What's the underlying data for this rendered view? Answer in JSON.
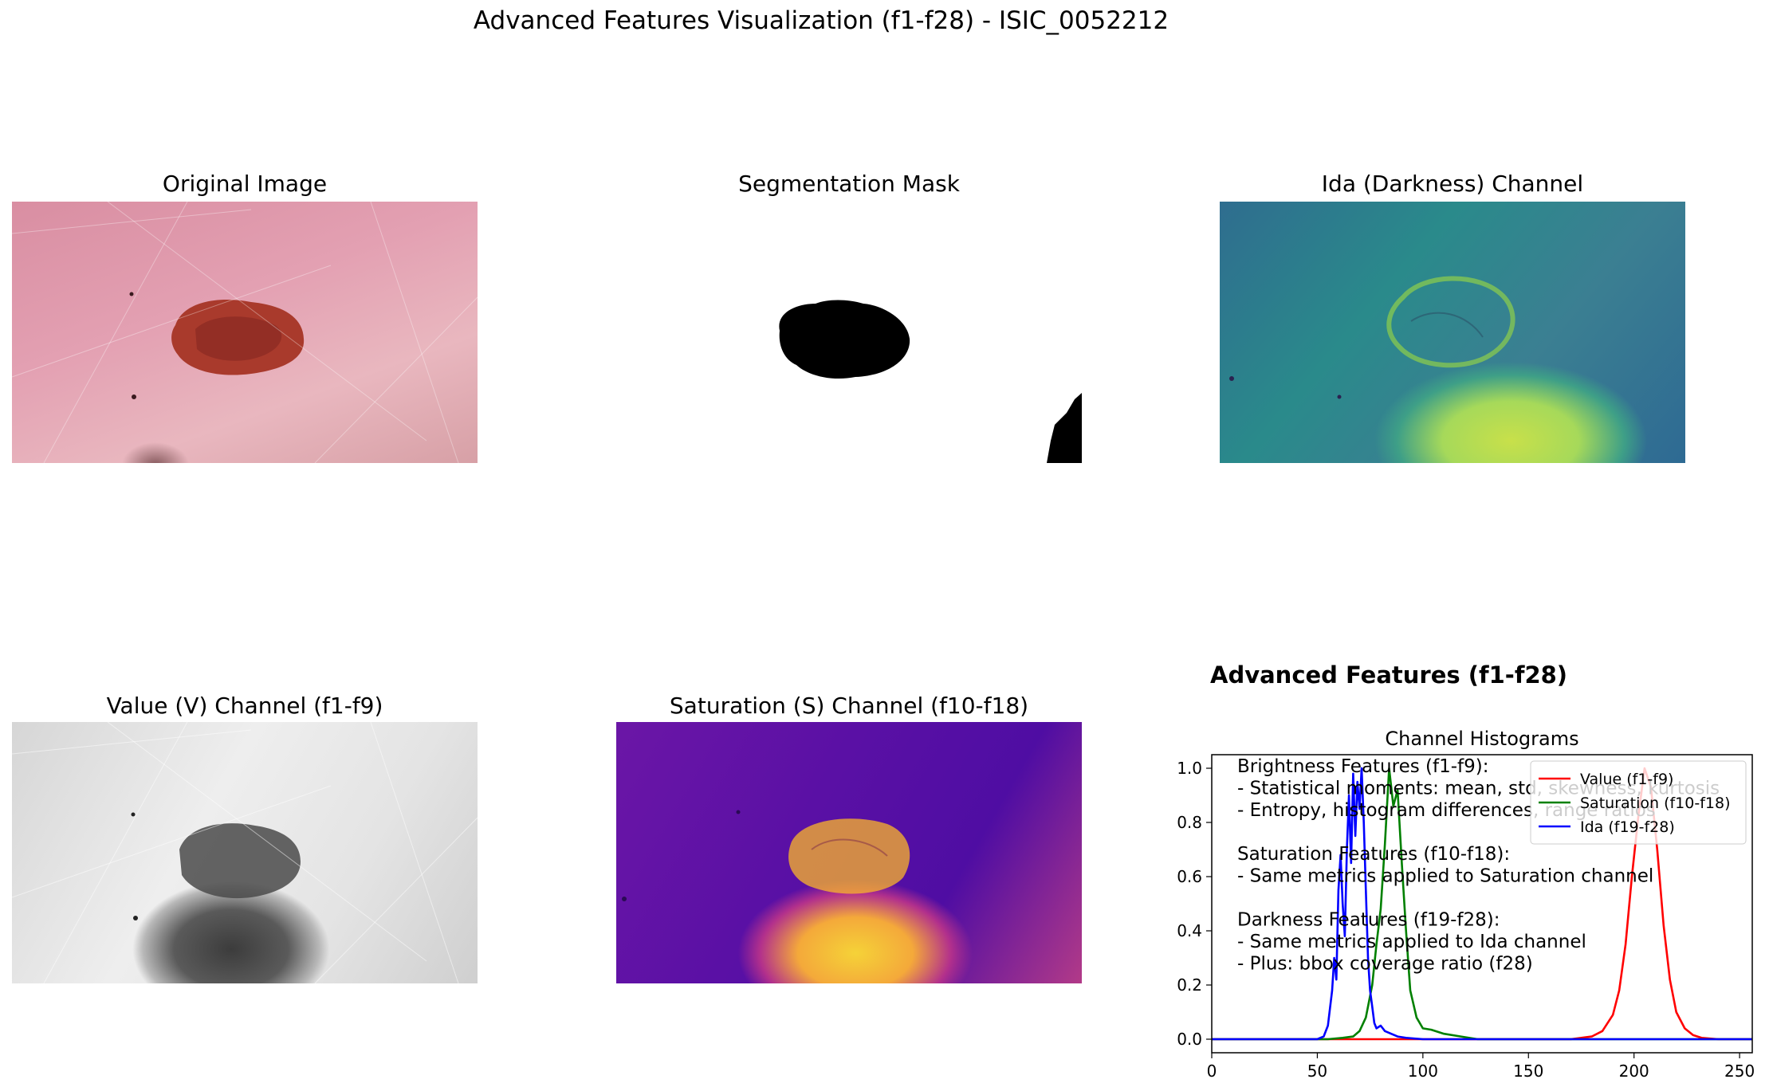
{
  "suptitle": "Advanced Features Visualization (f1-f28) - ISIC_0052212",
  "panels": {
    "original": "Original Image",
    "mask": "Segmentation Mask",
    "ida": "Ida (Darkness) Channel",
    "value": "Value (V) Channel (f1-f9)",
    "saturation": "Saturation (S) Channel (f10-f18)"
  },
  "features_title": "Advanced Features (f1-f28)",
  "notes": [
    "Brightness Features (f1-f9):",
    "- Statistical moments: mean, std, skewness, kurtosis",
    "- Entropy, histogram differences, range ratios",
    "",
    "Saturation Features (f10-f18):",
    "- Same metrics applied to Saturation channel",
    "",
    "Darkness Features (f19-f28):",
    "- Same metrics applied to Ida channel",
    "- Plus: bbox coverage ratio (f28)"
  ],
  "chart_data": {
    "type": "line",
    "title": "Channel Histograms",
    "xlabel": "",
    "ylabel": "",
    "xlim": [
      0,
      256
    ],
    "ylim": [
      -0.05,
      1.05
    ],
    "xticks": [
      0,
      50,
      100,
      150,
      200,
      250
    ],
    "yticks": [
      0.0,
      0.2,
      0.4,
      0.6,
      0.8,
      1.0
    ],
    "legend_position": "upper-right",
    "series": [
      {
        "name": "Value (f1-f9)",
        "color": "#ff0000",
        "x": [
          0,
          170,
          175,
          180,
          185,
          190,
          193,
          196,
          199,
          202,
          205,
          208,
          211,
          214,
          217,
          220,
          224,
          228,
          232,
          240,
          256
        ],
        "y": [
          0,
          0,
          0.005,
          0.01,
          0.03,
          0.09,
          0.18,
          0.35,
          0.6,
          0.82,
          1.0,
          0.93,
          0.7,
          0.42,
          0.22,
          0.1,
          0.04,
          0.015,
          0.005,
          0,
          0
        ]
      },
      {
        "name": "Saturation (f10-f18)",
        "color": "#008000",
        "x": [
          0,
          55,
          62,
          67,
          70,
          73,
          76,
          78,
          80,
          82,
          84,
          86,
          88,
          90,
          92,
          94,
          97,
          100,
          104,
          110,
          118,
          126,
          140,
          256
        ],
        "y": [
          0,
          0,
          0.005,
          0.01,
          0.03,
          0.08,
          0.2,
          0.35,
          0.48,
          0.72,
          1.0,
          0.86,
          0.92,
          0.65,
          0.4,
          0.18,
          0.08,
          0.04,
          0.035,
          0.02,
          0.01,
          0,
          0,
          0
        ]
      },
      {
        "name": "Ida (f19-f28)",
        "color": "#0000ff",
        "x": [
          0,
          50,
          53,
          55,
          57,
          58,
          59,
          60,
          61,
          62,
          63,
          64,
          65,
          66,
          67,
          68,
          69,
          70,
          71,
          72,
          73,
          74,
          75,
          76,
          77,
          78,
          80,
          82,
          85,
          88,
          92,
          100,
          256
        ],
        "y": [
          0,
          0,
          0.01,
          0.05,
          0.18,
          0.3,
          0.22,
          0.55,
          0.68,
          0.5,
          0.38,
          0.7,
          0.9,
          0.65,
          0.98,
          0.75,
          0.95,
          0.85,
          1.0,
          0.8,
          0.55,
          0.3,
          0.18,
          0.12,
          0.06,
          0.04,
          0.05,
          0.03,
          0.02,
          0.01,
          0.005,
          0,
          0
        ]
      }
    ]
  }
}
